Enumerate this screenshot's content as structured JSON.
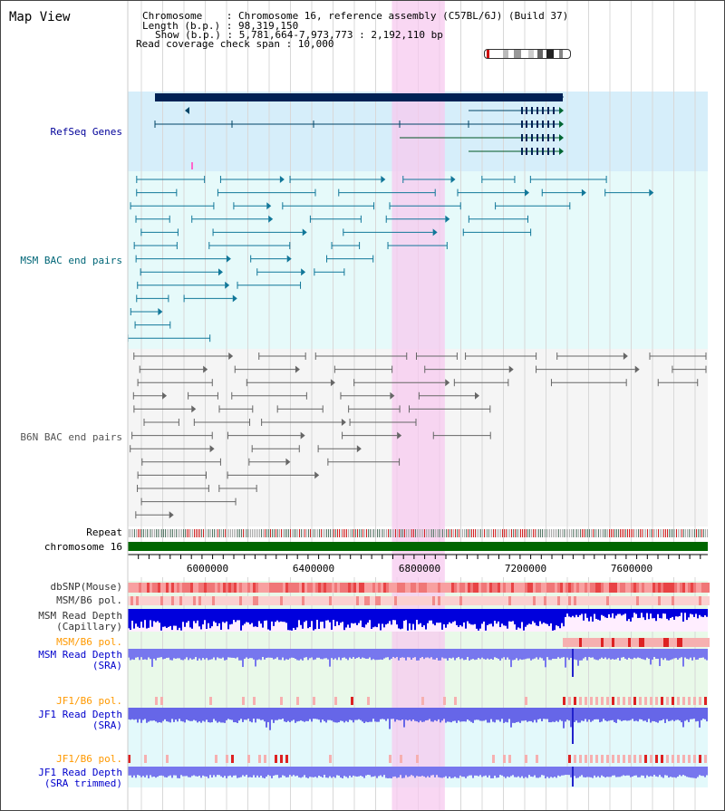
{
  "page": {
    "title": "Map View"
  },
  "header": {
    "lines": [
      "Chromosome    : Chromosome 16, reference assembly (C57BL/6J) (Build 37)",
      "Length (b.p.) : 98,319,150",
      "Show (b.p.) : 5,781,664-7,973,773 : 2,192,110 bp",
      "Read coverage check span : 10,000"
    ]
  },
  "tracks": {
    "refseq": {
      "label": "RefSeq Genes",
      "color": "#000099"
    },
    "msm_bac": {
      "label": "MSM BAC end pairs",
      "color": "#006677"
    },
    "b6n_bac": {
      "label": "B6N BAC end pairs",
      "color": "#555555"
    },
    "repeat": {
      "label": "Repeat"
    },
    "chromosome": {
      "label": "chromosome 16"
    },
    "dbsnp": {
      "label": "dbSNP(Mouse)"
    },
    "msm_b6_pol": {
      "label": "MSM/B6 pol."
    },
    "msm_depth_cap": {
      "label1": "MSM Read Depth",
      "label2": "(Capillary)"
    },
    "msm_b6_pol2": {
      "label": "MSM/B6 pol.",
      "color": "#ff9900"
    },
    "msm_depth_sra": {
      "label1": "MSM Read Depth",
      "label2": "(SRA)",
      "color": "#0000cc"
    },
    "jf1_b6_pol": {
      "label": "JF1/B6 pol.",
      "color": "#ff9900"
    },
    "jf1_depth_sra": {
      "label1": "JF1 Read Depth",
      "label2": "(SRA)",
      "color": "#0000cc"
    },
    "jf1_b6_pol2": {
      "label": "JF1/B6 pol.",
      "color": "#ff9900"
    },
    "jf1_depth_trim": {
      "label1": "JF1 Read Depth",
      "label2": "(SRA trimmed)",
      "color": "#0000cc"
    }
  },
  "axis": {
    "ticks": [
      "6000000",
      "6400000",
      "6800000",
      "7200000",
      "7600000"
    ],
    "start": 5781664,
    "end": 7973773
  },
  "highlight": {
    "start": 6780000,
    "end": 6980000
  }
}
